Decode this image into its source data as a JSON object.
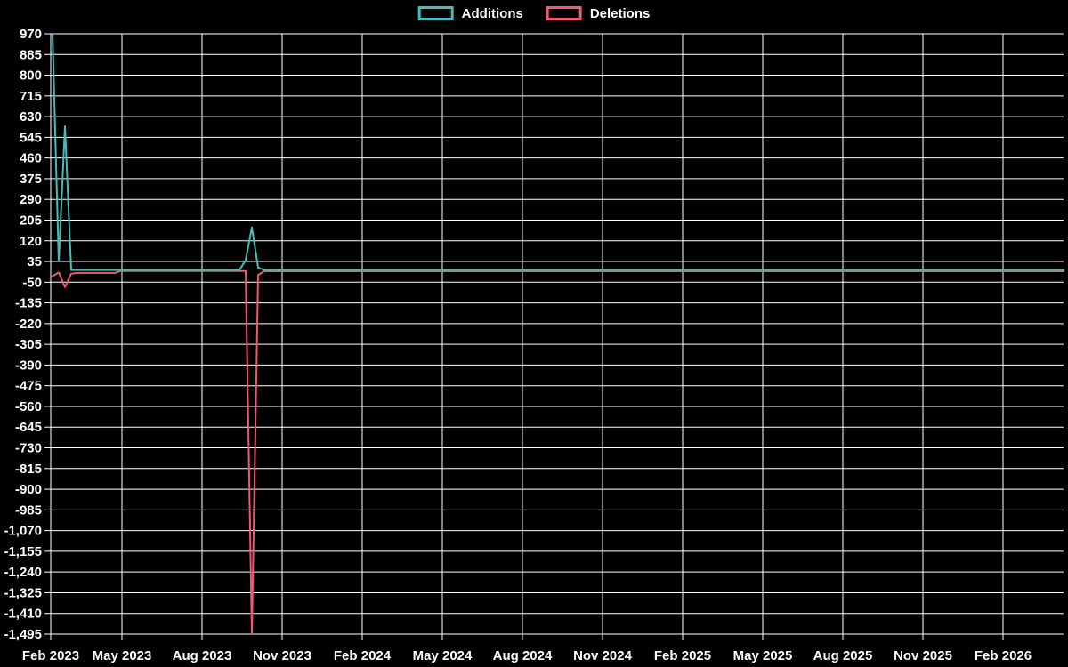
{
  "legend": {
    "items": [
      {
        "label": "Additions",
        "color": "#46bdb8"
      },
      {
        "label": "Deletions",
        "color": "#f0596e"
      }
    ]
  },
  "colors": {
    "background": "#000000",
    "grid": "#ffffff",
    "tick_text": "#ffffff",
    "additions": "#46bdb8",
    "deletions": "#f0596e"
  },
  "chart_data": {
    "type": "line",
    "title": "",
    "xlabel": "",
    "ylabel": "",
    "grid": "on",
    "legend_position": "top-center",
    "x_axis": {
      "tick_labels": [
        "Feb 2023",
        "May 2023",
        "Aug 2023",
        "Nov 2023",
        "Feb 2024",
        "May 2024",
        "Aug 2024",
        "Nov 2024",
        "Feb 2025",
        "May 2025",
        "Aug 2025",
        "Nov 2025",
        "Feb 2026"
      ],
      "tick_x": [
        57,
        137,
        227,
        317,
        407,
        497,
        587,
        677,
        767,
        857,
        947,
        1037,
        1127
      ]
    },
    "y_axis": {
      "tick_labels": [
        "970",
        "885",
        "800",
        "715",
        "630",
        "545",
        "460",
        "375",
        "290",
        "205",
        "120",
        "35",
        "-50",
        "-135",
        "-220",
        "-305",
        "-390",
        "-475",
        "-560",
        "-645",
        "-730",
        "-815",
        "-900",
        "-985",
        "-1,070",
        "-1,155",
        "-1,240",
        "-1,325",
        "-1,410",
        "-1,495"
      ],
      "max": 970,
      "min": -1495,
      "step": 85
    },
    "x_unit": "week_index_from_first_point",
    "series": [
      {
        "name": "Additions",
        "color": "#46bdb8",
        "points": [
          [
            0,
            970
          ],
          [
            1,
            35
          ],
          [
            2,
            590
          ],
          [
            3,
            0
          ],
          [
            30,
            0
          ],
          [
            31,
            40
          ],
          [
            32,
            175
          ],
          [
            33,
            10
          ],
          [
            34,
            0
          ],
          [
            163,
            0
          ]
        ]
      },
      {
        "name": "Deletions",
        "color": "#f0596e",
        "points": [
          [
            0,
            -25
          ],
          [
            1,
            -10
          ],
          [
            2,
            -70
          ],
          [
            3,
            -15
          ],
          [
            4,
            -12
          ],
          [
            10,
            -12
          ],
          [
            11,
            -4
          ],
          [
            31,
            -4
          ],
          [
            32,
            -1495
          ],
          [
            33,
            -20
          ],
          [
            34,
            -5
          ],
          [
            163,
            -5
          ]
        ]
      }
    ]
  }
}
